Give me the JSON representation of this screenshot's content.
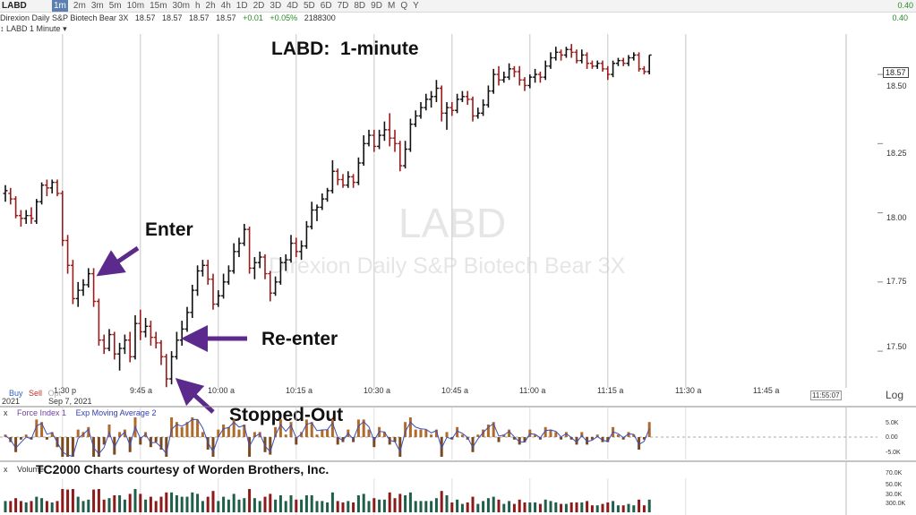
{
  "toolbar": {
    "symbol": "LABD",
    "timeframes": [
      "1m",
      "2m",
      "3m",
      "5m",
      "10m",
      "15m",
      "30m",
      "h",
      "2h",
      "4h",
      "1D",
      "2D",
      "3D",
      "4D",
      "5D",
      "6D",
      "7D",
      "8D",
      "9D",
      "M",
      "Q",
      "Y"
    ],
    "active_timeframe": "1m",
    "right_value": "0.40"
  },
  "quote": {
    "name": "Direxion Daily S&P Biotech Bear 3X",
    "values": [
      "18.57",
      "18.57",
      "18.57",
      "18.57"
    ],
    "change": "+0.01",
    "change_pct": "+0.05%",
    "volume": "2188300",
    "rt_value": "0.40"
  },
  "panel": {
    "label": "LABD 1 Minute"
  },
  "title": "LABD:  1-minute",
  "watermark": {
    "symbol": "LABD",
    "name": "Direxion Daily S&P Biotech Bear 3X"
  },
  "annotations": {
    "enter": "Enter",
    "reenter": "Re-enter",
    "stopped": "Stopped-Out"
  },
  "xaxis": {
    "labels": [
      "9:45 a",
      "10:00 a",
      "10:15 a",
      "10:30 a",
      "10:45 a",
      "11:00 a",
      "11:15 a",
      "11:30 a",
      "11:45 a"
    ],
    "date_label": "2021",
    "date_label2": "Sep 7, 2021",
    "partial_label": "1:30 p",
    "current_time": "11:55:07"
  },
  "order_buttons": {
    "buy": "Buy",
    "sell": "Sell",
    "opt": "Opt"
  },
  "yaxis": {
    "ticks": [
      "18.50",
      "18.25",
      "18.00",
      "17.75",
      "17.50"
    ],
    "current_price": "18.57",
    "scale_mode": "Log"
  },
  "indicator1": {
    "name": "Force Index 1",
    "overlay": "Exp Moving Average 2",
    "scale": [
      "5.0K",
      "0.00",
      "-5.0K"
    ]
  },
  "indicator2": {
    "name": "Volume",
    "courtesy": "TC2000 Charts courtesy of Worden Brothers, Inc.",
    "scale": [
      "70.0K",
      "50.0K",
      "30.0K",
      "300.0K"
    ]
  },
  "chart_data": {
    "type": "candlestick",
    "title": "LABD:  1-minute",
    "x_start": "9:32 a",
    "interval_minutes": 1,
    "ylim": [
      17.4,
      18.62
    ],
    "ohlc": [
      [
        18.07,
        18.1,
        18.04,
        18.08
      ],
      [
        18.07,
        18.09,
        18.03,
        18.05
      ],
      [
        18.05,
        18.06,
        17.98,
        17.99
      ],
      [
        17.99,
        18.01,
        17.95,
        17.98
      ],
      [
        17.98,
        18.01,
        17.96,
        17.99
      ],
      [
        17.99,
        18.02,
        17.96,
        17.98
      ],
      [
        17.97,
        18.05,
        17.96,
        18.04
      ],
      [
        18.04,
        18.11,
        18.03,
        18.1
      ],
      [
        18.1,
        18.12,
        18.06,
        18.09
      ],
      [
        18.09,
        18.12,
        18.07,
        18.11
      ],
      [
        18.11,
        18.12,
        18.06,
        18.07
      ],
      [
        18.07,
        18.08,
        17.88,
        17.9
      ],
      [
        17.9,
        17.92,
        17.78,
        17.81
      ],
      [
        17.81,
        17.83,
        17.67,
        17.69
      ],
      [
        17.69,
        17.75,
        17.66,
        17.72
      ],
      [
        17.72,
        17.76,
        17.7,
        17.74
      ],
      [
        17.74,
        17.8,
        17.73,
        17.78
      ],
      [
        17.78,
        17.8,
        17.66,
        17.68
      ],
      [
        17.68,
        17.69,
        17.52,
        17.54
      ],
      [
        17.54,
        17.56,
        17.49,
        17.51
      ],
      [
        17.51,
        17.58,
        17.5,
        17.56
      ],
      [
        17.56,
        17.57,
        17.47,
        17.49
      ],
      [
        17.49,
        17.53,
        17.43,
        17.51
      ],
      [
        17.51,
        17.56,
        17.49,
        17.54
      ],
      [
        17.54,
        17.57,
        17.46,
        17.48
      ],
      [
        17.48,
        17.63,
        17.47,
        17.6
      ],
      [
        17.6,
        17.65,
        17.54,
        17.57
      ],
      [
        17.57,
        17.62,
        17.55,
        17.59
      ],
      [
        17.59,
        17.61,
        17.52,
        17.55
      ],
      [
        17.55,
        17.57,
        17.51,
        17.53
      ],
      [
        17.53,
        17.54,
        17.45,
        17.48
      ],
      [
        17.48,
        17.49,
        17.37,
        17.4
      ],
      [
        17.4,
        17.5,
        17.38,
        17.48
      ],
      [
        17.48,
        17.57,
        17.47,
        17.54
      ],
      [
        17.54,
        17.61,
        17.52,
        17.58
      ],
      [
        17.58,
        17.66,
        17.57,
        17.64
      ],
      [
        17.64,
        17.74,
        17.62,
        17.72
      ],
      [
        17.72,
        17.81,
        17.7,
        17.79
      ],
      [
        17.79,
        17.83,
        17.77,
        17.81
      ],
      [
        17.81,
        17.83,
        17.74,
        17.76
      ],
      [
        17.76,
        17.78,
        17.65,
        17.67
      ],
      [
        17.67,
        17.72,
        17.66,
        17.7
      ],
      [
        17.7,
        17.78,
        17.69,
        17.75
      ],
      [
        17.75,
        17.81,
        17.74,
        17.79
      ],
      [
        17.79,
        17.89,
        17.78,
        17.86
      ],
      [
        17.86,
        17.91,
        17.84,
        17.89
      ],
      [
        17.89,
        17.96,
        17.88,
        17.94
      ],
      [
        17.94,
        17.95,
        17.78,
        17.8
      ],
      [
        17.8,
        17.84,
        17.76,
        17.82
      ],
      [
        17.82,
        17.86,
        17.8,
        17.84
      ],
      [
        17.84,
        17.85,
        17.76,
        17.78
      ],
      [
        17.78,
        17.79,
        17.68,
        17.71
      ],
      [
        17.71,
        17.77,
        17.7,
        17.75
      ],
      [
        17.75,
        17.84,
        17.74,
        17.82
      ],
      [
        17.82,
        17.85,
        17.79,
        17.83
      ],
      [
        17.83,
        17.92,
        17.82,
        17.89
      ],
      [
        17.89,
        17.91,
        17.84,
        17.86
      ],
      [
        17.86,
        17.9,
        17.83,
        17.88
      ],
      [
        17.88,
        17.97,
        17.87,
        17.95
      ],
      [
        17.95,
        18.04,
        17.94,
        18.01
      ],
      [
        18.01,
        18.03,
        17.97,
        18.02
      ],
      [
        18.02,
        18.07,
        18.01,
        18.05
      ],
      [
        18.05,
        18.09,
        18.04,
        18.08
      ],
      [
        18.08,
        18.19,
        18.07,
        18.15
      ],
      [
        18.15,
        18.16,
        18.1,
        18.12
      ],
      [
        18.12,
        18.14,
        18.09,
        18.1
      ],
      [
        18.1,
        18.15,
        18.09,
        18.13
      ],
      [
        18.13,
        18.14,
        18.09,
        18.11
      ],
      [
        18.11,
        18.2,
        18.1,
        18.18
      ],
      [
        18.18,
        18.28,
        18.17,
        18.25
      ],
      [
        18.25,
        18.3,
        18.24,
        18.28
      ],
      [
        18.28,
        18.3,
        18.22,
        18.24
      ],
      [
        18.24,
        18.3,
        18.23,
        18.28
      ],
      [
        18.28,
        18.33,
        18.26,
        18.3
      ],
      [
        18.3,
        18.36,
        18.24,
        18.27
      ],
      [
        18.27,
        18.3,
        18.22,
        18.25
      ],
      [
        18.25,
        18.26,
        18.15,
        18.17
      ],
      [
        18.17,
        18.26,
        18.16,
        18.23
      ],
      [
        18.23,
        18.34,
        18.22,
        18.32
      ],
      [
        18.32,
        18.37,
        18.31,
        18.35
      ],
      [
        18.35,
        18.4,
        18.34,
        18.38
      ],
      [
        18.38,
        18.43,
        18.37,
        18.41
      ],
      [
        18.41,
        18.44,
        18.38,
        18.42
      ],
      [
        18.42,
        18.48,
        18.4,
        18.45
      ],
      [
        18.45,
        18.46,
        18.33,
        18.36
      ],
      [
        18.36,
        18.4,
        18.3,
        18.38
      ],
      [
        18.38,
        18.4,
        18.35,
        18.37
      ],
      [
        18.37,
        18.43,
        18.36,
        18.41
      ],
      [
        18.41,
        18.44,
        18.4,
        18.42
      ],
      [
        18.42,
        18.44,
        18.39,
        18.41
      ],
      [
        18.41,
        18.42,
        18.33,
        18.35
      ],
      [
        18.35,
        18.38,
        18.34,
        18.36
      ],
      [
        18.36,
        18.41,
        18.35,
        18.39
      ],
      [
        18.39,
        18.46,
        18.38,
        18.44
      ],
      [
        18.44,
        18.52,
        18.43,
        18.5
      ],
      [
        18.5,
        18.53,
        18.46,
        18.48
      ],
      [
        18.48,
        18.51,
        18.47,
        18.49
      ],
      [
        18.49,
        18.54,
        18.48,
        18.52
      ],
      [
        18.52,
        18.53,
        18.49,
        18.51
      ],
      [
        18.51,
        18.53,
        18.46,
        18.48
      ],
      [
        18.48,
        18.49,
        18.44,
        18.46
      ],
      [
        18.46,
        18.5,
        18.45,
        18.49
      ],
      [
        18.49,
        18.52,
        18.47,
        18.5
      ],
      [
        18.5,
        18.51,
        18.47,
        18.49
      ],
      [
        18.49,
        18.55,
        18.48,
        18.53
      ],
      [
        18.53,
        18.58,
        18.52,
        18.56
      ],
      [
        18.56,
        18.6,
        18.55,
        18.58
      ],
      [
        18.58,
        18.59,
        18.55,
        18.57
      ],
      [
        18.57,
        18.6,
        18.56,
        18.59
      ],
      [
        18.59,
        18.61,
        18.56,
        18.58
      ],
      [
        18.58,
        18.59,
        18.54,
        18.55
      ],
      [
        18.55,
        18.59,
        18.54,
        18.57
      ],
      [
        18.57,
        18.58,
        18.52,
        18.54
      ],
      [
        18.54,
        18.55,
        18.52,
        18.53
      ],
      [
        18.53,
        18.55,
        18.52,
        18.54
      ],
      [
        18.54,
        18.55,
        18.51,
        18.52
      ],
      [
        18.52,
        18.53,
        18.48,
        18.5
      ],
      [
        18.5,
        18.55,
        18.49,
        18.54
      ],
      [
        18.54,
        18.56,
        18.53,
        18.55
      ],
      [
        18.55,
        18.56,
        18.53,
        18.54
      ],
      [
        18.54,
        18.57,
        18.53,
        18.56
      ],
      [
        18.56,
        18.58,
        18.55,
        18.57
      ],
      [
        18.57,
        18.58,
        18.51,
        18.52
      ],
      [
        18.52,
        18.53,
        18.5,
        18.51
      ],
      [
        18.51,
        18.57,
        18.5,
        18.57
      ]
    ]
  }
}
